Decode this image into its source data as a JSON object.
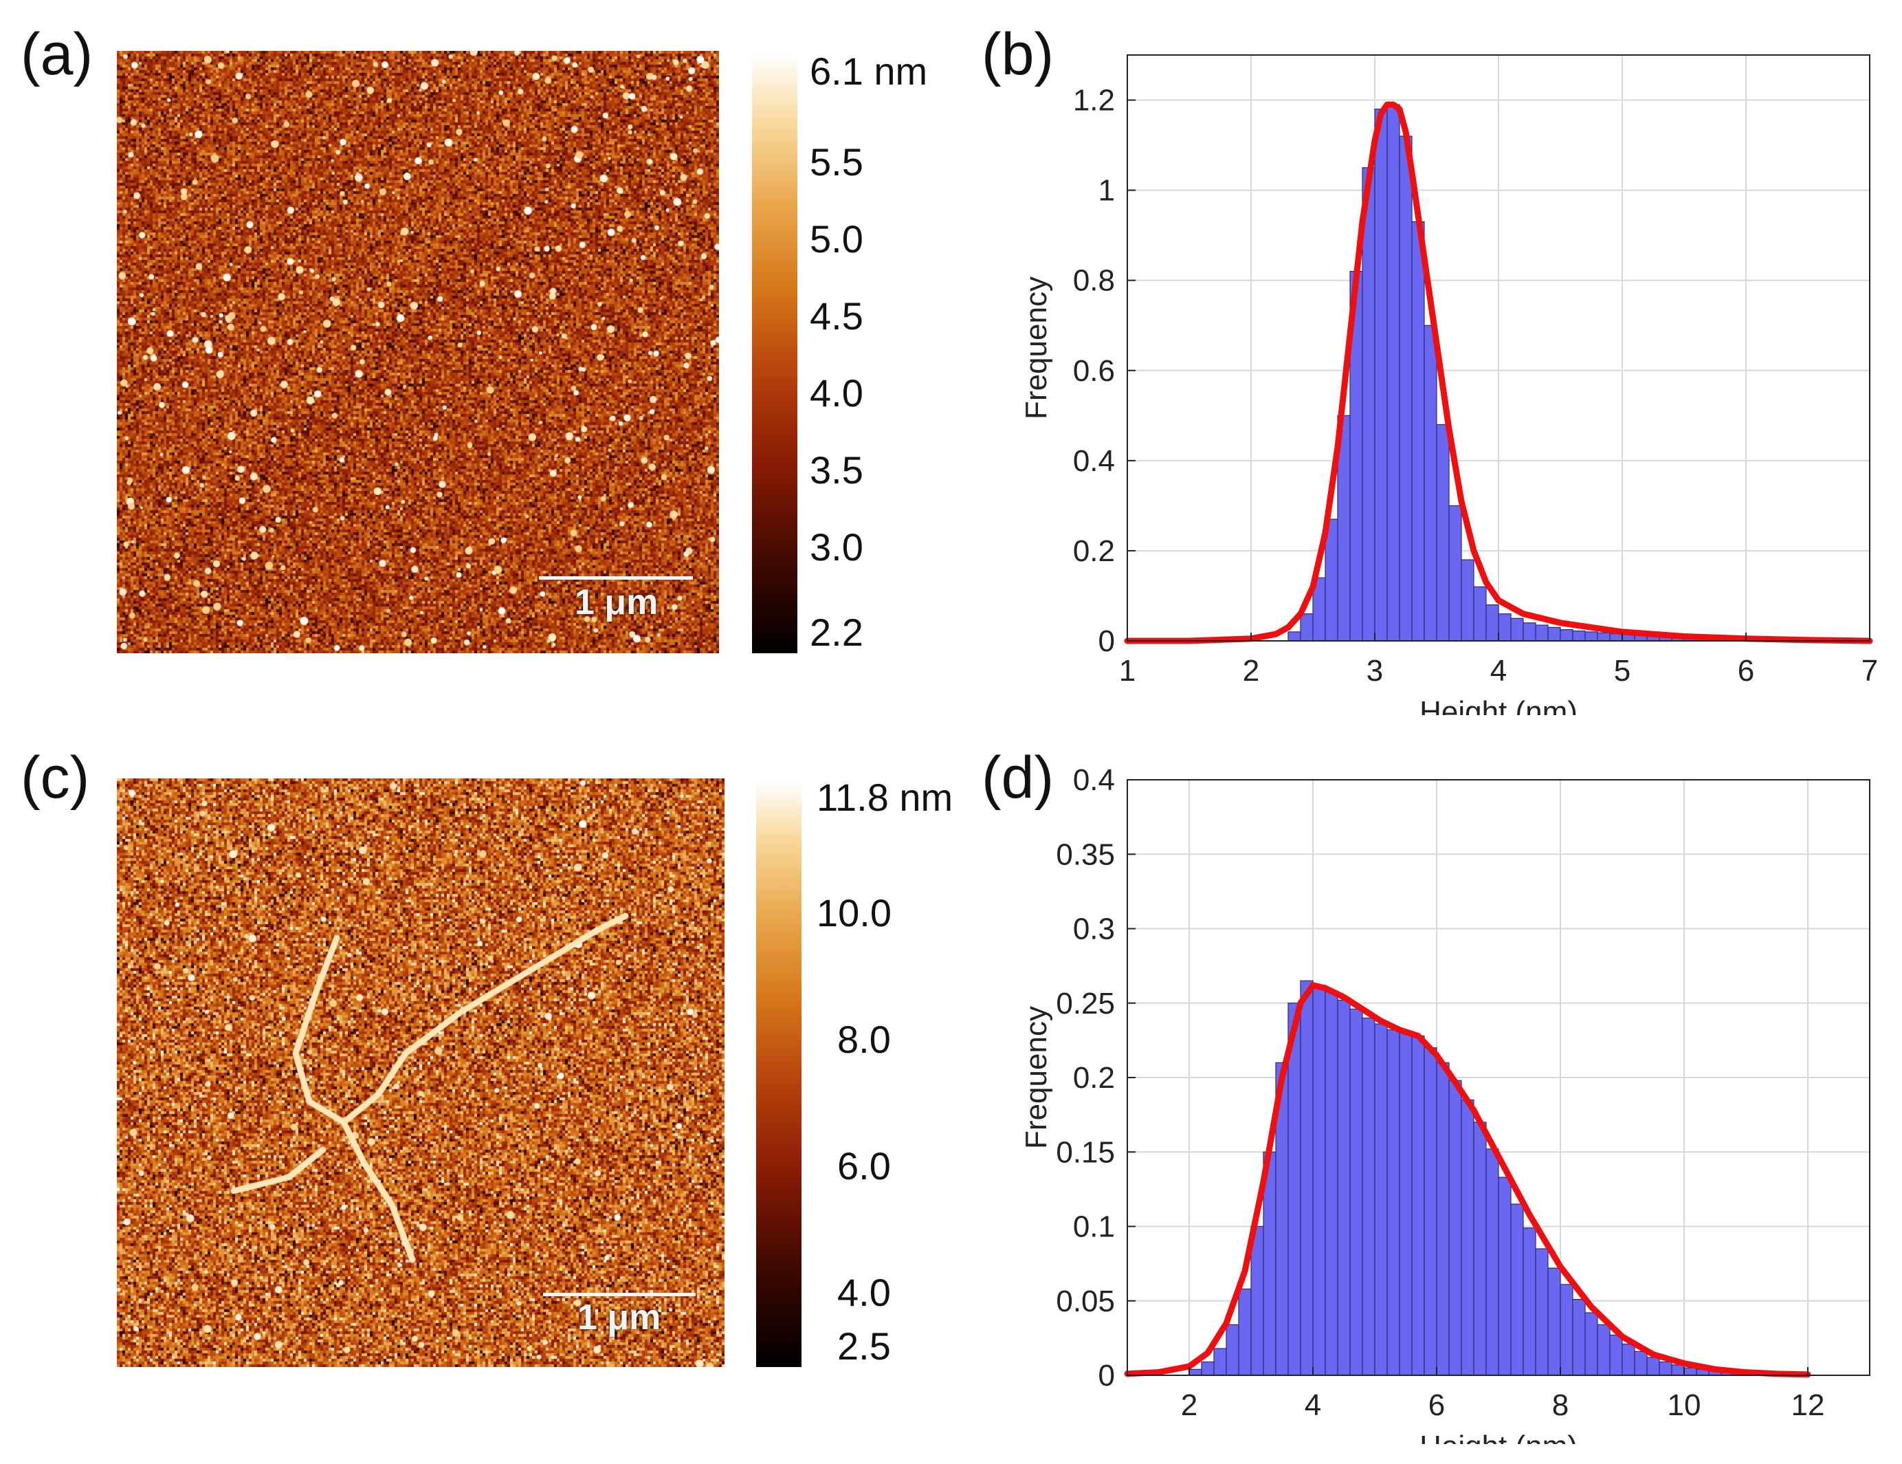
{
  "colors": {
    "bar_fill": "#6a68f0",
    "bar_stroke": "#2b2b70",
    "fit_line": "#ee1010",
    "grid": "#d8d8d8",
    "axis": "#222222"
  },
  "panels": {
    "a": {
      "label": "(a)",
      "scalebar": "1 μm",
      "colorbar_ticks": [
        "6.1 nm",
        "5.5",
        "5.0",
        "4.5",
        "4.0",
        "3.5",
        "3.0",
        "2.2"
      ]
    },
    "b": {
      "label": "(b)"
    },
    "c": {
      "label": "(c)",
      "scalebar": "1 μm",
      "colorbar_ticks": [
        "11.8 nm",
        "10.0",
        "8.0",
        "6.0",
        "4.0",
        "2.5"
      ]
    },
    "d": {
      "label": "(d)"
    }
  },
  "chart_data": [
    {
      "id": "b",
      "type": "bar",
      "title": "",
      "xlabel": "Height (nm)",
      "ylabel": "Frequency",
      "xlim": [
        1,
        7
      ],
      "ylim": [
        0,
        1.3
      ],
      "xticks": [
        1,
        2,
        3,
        4,
        5,
        6,
        7
      ],
      "xtick_labels": [
        "1",
        "2",
        "3",
        "4",
        "5",
        "6",
        "7"
      ],
      "yticks": [
        0,
        0.2,
        0.4,
        0.6,
        0.8,
        1,
        1.2
      ],
      "ytick_labels": [
        "0",
        "0.2",
        "0.4",
        "0.6",
        "0.8",
        "1",
        "1.2"
      ],
      "grid": true,
      "bin_width": 0.1,
      "bin_centers": [
        2.35,
        2.45,
        2.55,
        2.65,
        2.75,
        2.85,
        2.95,
        3.05,
        3.15,
        3.25,
        3.35,
        3.45,
        3.55,
        3.65,
        3.75,
        3.85,
        3.95,
        4.05,
        4.15,
        4.25,
        4.35,
        4.45,
        4.55,
        4.65,
        4.75,
        4.85,
        4.95,
        5.05,
        5.15,
        5.25,
        5.35,
        5.45,
        5.55,
        5.65,
        5.75,
        5.85,
        5.95
      ],
      "values": [
        0.02,
        0.06,
        0.14,
        0.27,
        0.5,
        0.82,
        1.05,
        1.18,
        1.19,
        1.12,
        0.93,
        0.7,
        0.48,
        0.3,
        0.18,
        0.12,
        0.08,
        0.06,
        0.05,
        0.04,
        0.035,
        0.03,
        0.025,
        0.022,
        0.02,
        0.018,
        0.016,
        0.014,
        0.012,
        0.01,
        0.009,
        0.008,
        0.007,
        0.006,
        0.006,
        0.005,
        0.004
      ],
      "fit": {
        "x": [
          1,
          1.5,
          2,
          2.2,
          2.3,
          2.4,
          2.5,
          2.6,
          2.7,
          2.8,
          2.9,
          3.0,
          3.05,
          3.1,
          3.15,
          3.2,
          3.25,
          3.3,
          3.4,
          3.5,
          3.6,
          3.7,
          3.8,
          3.9,
          4.0,
          4.2,
          4.5,
          5.0,
          5.5,
          6.0,
          6.5,
          7.0
        ],
        "y": [
          0,
          0,
          0.005,
          0.015,
          0.03,
          0.06,
          0.12,
          0.24,
          0.43,
          0.68,
          0.93,
          1.11,
          1.17,
          1.19,
          1.19,
          1.18,
          1.13,
          1.04,
          0.85,
          0.66,
          0.47,
          0.31,
          0.2,
          0.13,
          0.09,
          0.06,
          0.04,
          0.02,
          0.01,
          0.005,
          0.002,
          0
        ]
      }
    },
    {
      "id": "d",
      "type": "bar",
      "title": "",
      "xlabel": "Height (nm)",
      "ylabel": "Frequency",
      "xlim": [
        1,
        13
      ],
      "ylim": [
        0,
        0.4
      ],
      "xticks": [
        2,
        4,
        6,
        8,
        10,
        12
      ],
      "xtick_labels": [
        "2",
        "4",
        "6",
        "8",
        "10",
        "12"
      ],
      "yticks": [
        0,
        0.05,
        0.1,
        0.15,
        0.2,
        0.25,
        0.3,
        0.35,
        0.4
      ],
      "ytick_labels": [
        "0",
        "0.05",
        "0.1",
        "0.15",
        "0.2",
        "0.25",
        "0.3",
        "0.35",
        "0.4"
      ],
      "grid": true,
      "bin_width": 0.2,
      "bin_centers": [
        2.1,
        2.3,
        2.5,
        2.7,
        2.9,
        3.1,
        3.3,
        3.5,
        3.7,
        3.9,
        4.1,
        4.3,
        4.5,
        4.7,
        4.9,
        5.1,
        5.3,
        5.5,
        5.7,
        5.9,
        6.1,
        6.3,
        6.5,
        6.7,
        6.9,
        7.1,
        7.3,
        7.5,
        7.7,
        7.9,
        8.1,
        8.3,
        8.5,
        8.7,
        8.9,
        9.1,
        9.3,
        9.5,
        9.7,
        9.9,
        10.1,
        10.3,
        10.5,
        10.7,
        10.9,
        11.1,
        11.3,
        11.5,
        11.7,
        11.9
      ],
      "values": [
        0.004,
        0.009,
        0.018,
        0.034,
        0.058,
        0.1,
        0.15,
        0.21,
        0.25,
        0.265,
        0.262,
        0.258,
        0.252,
        0.246,
        0.24,
        0.236,
        0.232,
        0.23,
        0.228,
        0.22,
        0.21,
        0.198,
        0.185,
        0.17,
        0.152,
        0.133,
        0.115,
        0.099,
        0.085,
        0.072,
        0.061,
        0.051,
        0.042,
        0.034,
        0.027,
        0.021,
        0.016,
        0.012,
        0.009,
        0.007,
        0.005,
        0.004,
        0.003,
        0.0025,
        0.002,
        0.0015,
        0.001,
        0.001,
        0.0008,
        0.0005
      ],
      "fit": {
        "x": [
          1,
          1.5,
          2,
          2.3,
          2.6,
          2.9,
          3.2,
          3.5,
          3.8,
          4.0,
          4.2,
          4.5,
          4.8,
          5.1,
          5.4,
          5.7,
          6.0,
          6.3,
          6.6,
          7.0,
          7.5,
          8.0,
          8.5,
          9.0,
          9.5,
          10.0,
          10.5,
          11.0,
          11.5,
          12.0
        ],
        "y": [
          0.001,
          0.002,
          0.006,
          0.015,
          0.035,
          0.07,
          0.13,
          0.2,
          0.25,
          0.262,
          0.26,
          0.254,
          0.246,
          0.238,
          0.232,
          0.228,
          0.215,
          0.197,
          0.178,
          0.147,
          0.108,
          0.073,
          0.046,
          0.026,
          0.014,
          0.008,
          0.004,
          0.002,
          0.001,
          0.0005
        ]
      }
    }
  ]
}
